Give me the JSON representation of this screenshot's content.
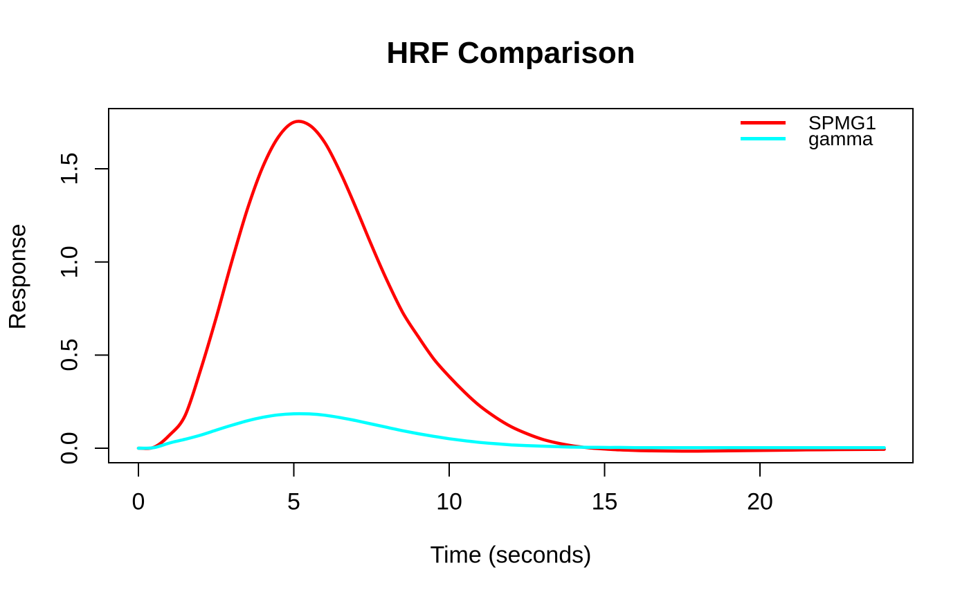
{
  "title": "HRF Comparison",
  "chart_data": {
    "type": "line",
    "title": "HRF Comparison",
    "xlabel": "Time (seconds)",
    "ylabel": "Response",
    "xlim": [
      0,
      24
    ],
    "ylim": [
      -0.08,
      1.82
    ],
    "grid": false,
    "legend_position": "top-right",
    "x_ticks": [
      {
        "value": 0,
        "label": "0"
      },
      {
        "value": 5,
        "label": "5"
      },
      {
        "value": 10,
        "label": "10"
      },
      {
        "value": 15,
        "label": "15"
      },
      {
        "value": 20,
        "label": "20"
      }
    ],
    "y_ticks": [
      {
        "value": 0.0,
        "label": "0.0"
      },
      {
        "value": 0.5,
        "label": "0.5"
      },
      {
        "value": 1.0,
        "label": "1.0"
      },
      {
        "value": 1.5,
        "label": "1.5"
      }
    ],
    "x": [
      0,
      0.5,
      1,
      1.5,
      2,
      2.5,
      3,
      3.5,
      4,
      4.5,
      5,
      5.5,
      6,
      6.5,
      7,
      7.5,
      8,
      8.5,
      9,
      9.5,
      10,
      10.5,
      11,
      11.5,
      12,
      12.5,
      13,
      13.5,
      14,
      14.5,
      15,
      15.5,
      16,
      16.5,
      17,
      17.5,
      18,
      18.5,
      19,
      19.5,
      20,
      20.5,
      21,
      21.5,
      22,
      22.5,
      23,
      23.5,
      24
    ],
    "series": [
      {
        "name": "SPMG1",
        "color": "#FF0000",
        "values": [
          0.0,
          0.005,
          0.07,
          0.175,
          0.42,
          0.7,
          1.0,
          1.28,
          1.51,
          1.67,
          1.75,
          1.735,
          1.64,
          1.48,
          1.29,
          1.09,
          0.9,
          0.73,
          0.6,
          0.48,
          0.385,
          0.3,
          0.225,
          0.165,
          0.115,
          0.078,
          0.048,
          0.027,
          0.012,
          0.002,
          -0.004,
          -0.009,
          -0.012,
          -0.014,
          -0.015,
          -0.0155,
          -0.0155,
          -0.015,
          -0.014,
          -0.013,
          -0.012,
          -0.011,
          -0.01,
          -0.009,
          -0.008,
          -0.0075,
          -0.007,
          -0.0065,
          -0.006
        ]
      },
      {
        "name": "gamma",
        "color": "#00FFFF",
        "values": [
          0.0,
          0.003,
          0.028,
          0.048,
          0.07,
          0.097,
          0.123,
          0.147,
          0.166,
          0.179,
          0.185,
          0.184,
          0.177,
          0.164,
          0.148,
          0.13,
          0.112,
          0.094,
          0.078,
          0.064,
          0.051,
          0.04,
          0.031,
          0.024,
          0.018,
          0.014,
          0.011,
          0.008,
          0.006,
          0.005,
          0.004,
          0.004,
          0.003,
          0.003,
          0.003,
          0.003,
          0.003,
          0.003,
          0.003,
          0.003,
          0.003,
          0.003,
          0.003,
          0.003,
          0.003,
          0.003,
          0.003,
          0.003,
          0.003
        ]
      }
    ]
  }
}
